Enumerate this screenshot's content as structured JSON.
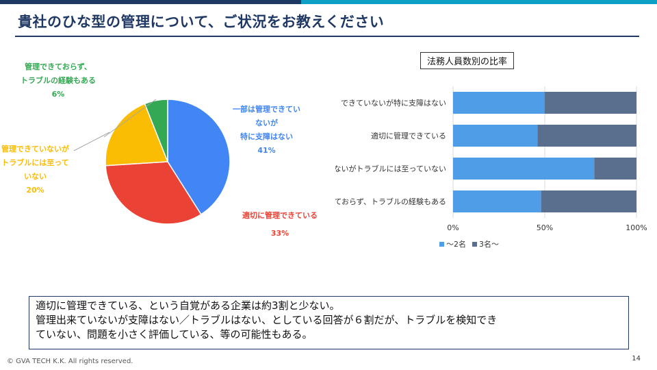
{
  "slide": {
    "title": "貴社のひな型の管理について、ご状況をお教えください",
    "page_number": "14",
    "footer": "© GVA TECH K.K. All rights reserved."
  },
  "summary": {
    "lines": [
      "適切に管理できている、という自覚がある企業は約3割と少ない。",
      "管理出来ていないが支障はない／トラブルはない、としている回答が６割だが、トラブルを検知でき",
      "ていない、問題を小さく評価している、等の可能性もある。"
    ]
  },
  "chart_data": [
    {
      "type": "pie",
      "slices": [
        {
          "label_lines": [
            "一部は管理できてい",
            "ないが",
            "特に支障はない"
          ],
          "pct_label": "41%",
          "value": 41,
          "color": "#4285f4"
        },
        {
          "label_lines": [
            "適切に管理できている"
          ],
          "pct_label": "33%",
          "value": 33,
          "color": "#ea4335"
        },
        {
          "label_lines": [
            "管理できていないが",
            "トラブルには至って",
            "いない"
          ],
          "pct_label": "20%",
          "value": 20,
          "color": "#fbbc04"
        },
        {
          "label_lines": [
            "管理できておらず、",
            "トラブルの経験もある"
          ],
          "pct_label": "6%",
          "value": 6,
          "color": "#34a853"
        }
      ]
    },
    {
      "type": "bar",
      "orientation": "horizontal",
      "stacked": "percent",
      "title": "法務人員数別の比率",
      "categories": [
        "できていないが特に支障はない",
        "適切に管理できている",
        "ないがトラブルには至っていない",
        "ておらず、トラブルの経験もある"
      ],
      "series": [
        {
          "name": "〜2名",
          "color": "#4e9de6",
          "values": [
            50,
            46,
            77,
            48
          ]
        },
        {
          "name": "3名〜",
          "color": "#5a6f8e",
          "values": [
            50,
            54,
            23,
            52
          ]
        }
      ],
      "x_ticks": [
        "0%",
        "50%",
        "100%"
      ],
      "xlim": [
        0,
        100
      ],
      "grid": true,
      "legend": "bottom"
    }
  ]
}
